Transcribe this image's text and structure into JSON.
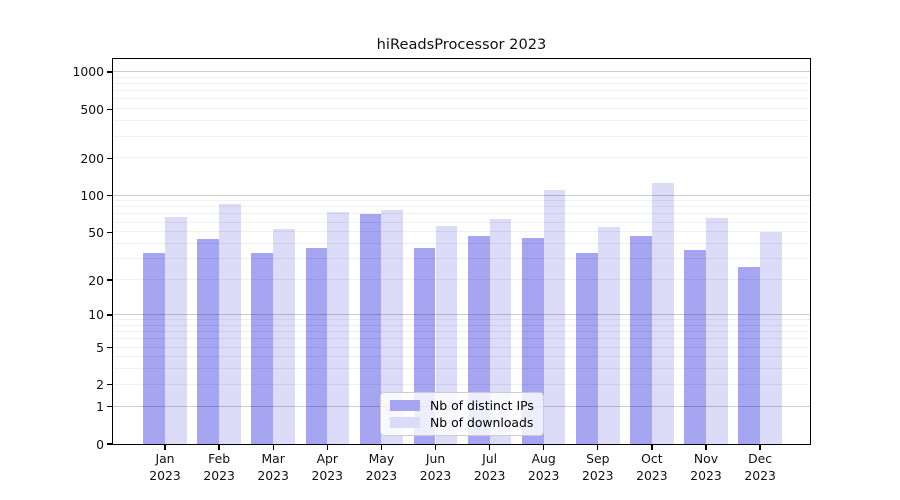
{
  "title": "hiReadsProcessor 2023",
  "colors": {
    "figure_background": "#ffffff",
    "distinct_ips_bar": "#a5a5f2",
    "downloads_bar": "#dcdcf9",
    "axis": "#000000",
    "major_grid": "#cccccc",
    "minor_grid": "#f1f1f1",
    "legend_border": "#cccccc"
  },
  "chart_data": {
    "type": "bar",
    "title": "hiReadsProcessor 2023",
    "yscale": "log1p",
    "grid": true,
    "legend_position": "lower center",
    "categories": [
      "Jan",
      "Feb",
      "Mar",
      "Apr",
      "May",
      "Jun",
      "Jul",
      "Aug",
      "Sep",
      "Oct",
      "Nov",
      "Dec"
    ],
    "x_year_line": "2023",
    "series": [
      {
        "name": "Nb of distinct IPs",
        "color": "#a5a5f2",
        "values": [
          34,
          44,
          34,
          37,
          70,
          37,
          47,
          45,
          34,
          47,
          36,
          26
        ]
      },
      {
        "name": "Nb of downloads",
        "color": "#dcdcf9",
        "values": [
          67,
          86,
          53,
          73,
          76,
          56,
          64,
          111,
          55,
          126,
          65,
          50
        ]
      }
    ],
    "yticks": [
      0,
      1,
      2,
      5,
      10,
      20,
      50,
      100,
      200,
      500,
      1000
    ],
    "ylim": [
      0,
      1240
    ],
    "xlabel": "",
    "ylabel": ""
  },
  "legend": {
    "items": [
      {
        "label": "Nb of distinct IPs"
      },
      {
        "label": "Nb of downloads"
      }
    ]
  }
}
